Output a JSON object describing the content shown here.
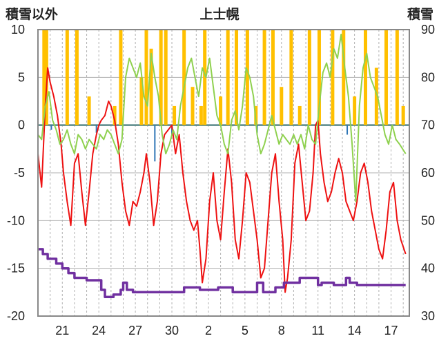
{
  "chart_data": {
    "type": "line",
    "title": "上士幌",
    "left_axis_label": "積雪以外",
    "right_axis_label": "積雪",
    "y_left": {
      "min": -20,
      "max": 10,
      "ticks": [
        "10",
        "5",
        "0",
        "-5",
        "-10",
        "-15",
        "-20"
      ]
    },
    "y_right": {
      "min": 30,
      "max": 90,
      "ticks": [
        "90",
        "80",
        "70",
        "60",
        "50",
        "40",
        "30"
      ]
    },
    "x_ticks": [
      {
        "label": "21",
        "day": 2
      },
      {
        "label": "24",
        "day": 5
      },
      {
        "label": "27",
        "day": 8
      },
      {
        "label": "30",
        "day": 11
      },
      {
        "label": "2",
        "day": 14
      },
      {
        "label": "5",
        "day": 17
      },
      {
        "label": "8",
        "day": 20
      },
      {
        "label": "11",
        "day": 23
      },
      {
        "label": "14",
        "day": 26
      },
      {
        "label": "17",
        "day": 29
      }
    ],
    "x_range": [
      0,
      30.5
    ],
    "grid": {
      "horizontal": true,
      "vertical_dashed": true
    },
    "colors": {
      "temperature": "#ee1111",
      "precip": "#ffc000",
      "sunshine": "#8fd14f",
      "wind": "#2e75b6",
      "snow_depth": "#7030a0",
      "zero_line": "#5a8a8a",
      "frame": "#888888",
      "grid": "#b0b0b0"
    },
    "series": [
      {
        "key": "temperature",
        "axis": "left",
        "points": [
          [
            0,
            -3
          ],
          [
            0.3,
            -6.5
          ],
          [
            0.6,
            2
          ],
          [
            0.8,
            6
          ],
          [
            1,
            4.5
          ],
          [
            1.3,
            3
          ],
          [
            1.6,
            1
          ],
          [
            1.9,
            -2
          ],
          [
            2.1,
            -5
          ],
          [
            2.4,
            -8
          ],
          [
            2.7,
            -10.5
          ],
          [
            3,
            -4
          ],
          [
            3.3,
            -3
          ],
          [
            3.6,
            -7
          ],
          [
            3.9,
            -10.5
          ],
          [
            4.2,
            -7
          ],
          [
            4.5,
            -3
          ],
          [
            4.8,
            -1
          ],
          [
            5,
            0
          ],
          [
            5.2,
            0.5
          ],
          [
            5.5,
            1
          ],
          [
            5.8,
            2.5
          ],
          [
            6,
            2
          ],
          [
            6.3,
            0.5
          ],
          [
            6.6,
            -2
          ],
          [
            6.9,
            -6
          ],
          [
            7.2,
            -9
          ],
          [
            7.5,
            -10.5
          ],
          [
            7.8,
            -8
          ],
          [
            8.1,
            -8.5
          ],
          [
            8.4,
            -7
          ],
          [
            8.7,
            -5
          ],
          [
            8.9,
            -3
          ],
          [
            9.2,
            -6
          ],
          [
            9.5,
            -10.5
          ],
          [
            9.8,
            -8
          ],
          [
            10.1,
            -3
          ],
          [
            10.4,
            -1
          ],
          [
            10.7,
            -0.5
          ],
          [
            11,
            0
          ],
          [
            11.3,
            -3
          ],
          [
            11.6,
            -1
          ],
          [
            11.9,
            -5
          ],
          [
            12.2,
            -8
          ],
          [
            12.5,
            -10
          ],
          [
            12.8,
            -11
          ],
          [
            13.1,
            -10
          ],
          [
            13.3,
            -13
          ],
          [
            13.5,
            -16.5
          ],
          [
            13.8,
            -14
          ],
          [
            14.1,
            -8
          ],
          [
            14.4,
            -5
          ],
          [
            14.7,
            -10
          ],
          [
            15,
            -12
          ],
          [
            15.3,
            -7
          ],
          [
            15.6,
            -2.5
          ],
          [
            15.9,
            -6
          ],
          [
            16.2,
            -12
          ],
          [
            16.5,
            -14
          ],
          [
            16.8,
            -10
          ],
          [
            17.1,
            -5
          ],
          [
            17.4,
            -6
          ],
          [
            17.7,
            -9
          ],
          [
            18,
            -12
          ],
          [
            18.3,
            -16
          ],
          [
            18.6,
            -15
          ],
          [
            18.9,
            -10
          ],
          [
            19.2,
            -5
          ],
          [
            19.5,
            -3
          ],
          [
            19.8,
            -8
          ],
          [
            20.1,
            -12
          ],
          [
            20.3,
            -17.5
          ],
          [
            20.5,
            -16
          ],
          [
            20.8,
            -12
          ],
          [
            21.1,
            -4
          ],
          [
            21.4,
            -2
          ],
          [
            21.7,
            -6
          ],
          [
            22,
            -10
          ],
          [
            22.3,
            -9
          ],
          [
            22.6,
            -5
          ],
          [
            22.8,
            0
          ],
          [
            23,
            0.5
          ],
          [
            23.2,
            -3
          ],
          [
            23.5,
            -6
          ],
          [
            23.8,
            -8
          ],
          [
            24.1,
            -7
          ],
          [
            24.4,
            -5
          ],
          [
            24.7,
            -3.5
          ],
          [
            25,
            -5
          ],
          [
            25.3,
            -8
          ],
          [
            25.6,
            -9
          ],
          [
            25.9,
            -10
          ],
          [
            26.2,
            -8
          ],
          [
            26.5,
            -5
          ],
          [
            26.8,
            -4
          ],
          [
            27.1,
            -6
          ],
          [
            27.4,
            -9
          ],
          [
            27.7,
            -11
          ],
          [
            28,
            -13
          ],
          [
            28.3,
            -14
          ],
          [
            28.6,
            -11
          ],
          [
            28.9,
            -7
          ],
          [
            29.2,
            -6
          ],
          [
            29.5,
            -10
          ],
          [
            29.8,
            -12
          ],
          [
            30.2,
            -13.5
          ]
        ]
      },
      {
        "key": "sunshine",
        "axis": "left",
        "points": [
          [
            0,
            -1
          ],
          [
            0.3,
            -1.5
          ],
          [
            0.6,
            2
          ],
          [
            0.9,
            3.5
          ],
          [
            1.2,
            0.5
          ],
          [
            1.5,
            -0.5
          ],
          [
            1.8,
            -2
          ],
          [
            2.1,
            -1.5
          ],
          [
            2.4,
            -0.5
          ],
          [
            2.7,
            -2
          ],
          [
            3,
            -3
          ],
          [
            3.3,
            -1
          ],
          [
            3.6,
            -1.5
          ],
          [
            3.9,
            -2.5
          ],
          [
            4.2,
            -1.5
          ],
          [
            4.5,
            -2
          ],
          [
            4.8,
            -2.5
          ],
          [
            5.1,
            -1
          ],
          [
            5.4,
            -1.5
          ],
          [
            5.7,
            -0.5
          ],
          [
            6,
            -1
          ],
          [
            6.3,
            -2
          ],
          [
            6.6,
            -3
          ],
          [
            6.9,
            -1.5
          ],
          [
            7.2,
            5
          ],
          [
            7.5,
            7
          ],
          [
            7.8,
            6
          ],
          [
            8.1,
            5
          ],
          [
            8.4,
            6.5
          ],
          [
            8.7,
            3
          ],
          [
            9,
            2
          ],
          [
            9.3,
            7.5
          ],
          [
            9.6,
            5
          ],
          [
            9.9,
            3
          ],
          [
            10.2,
            -1
          ],
          [
            10.5,
            -3
          ],
          [
            10.8,
            -2
          ],
          [
            11.1,
            -0.5
          ],
          [
            11.4,
            -1.5
          ],
          [
            11.7,
            2
          ],
          [
            12,
            4
          ],
          [
            12.3,
            6
          ],
          [
            12.6,
            7
          ],
          [
            12.9,
            5
          ],
          [
            13.2,
            3
          ],
          [
            13.5,
            6
          ],
          [
            13.8,
            5
          ],
          [
            14.1,
            7
          ],
          [
            14.4,
            4
          ],
          [
            14.7,
            1
          ],
          [
            15,
            0
          ],
          [
            15.3,
            -2
          ],
          [
            15.6,
            -3
          ],
          [
            15.9,
            0.5
          ],
          [
            16.2,
            1.5
          ],
          [
            16.5,
            -0.5
          ],
          [
            16.8,
            2
          ],
          [
            17.1,
            6
          ],
          [
            17.4,
            5
          ],
          [
            17.7,
            3
          ],
          [
            18,
            -1
          ],
          [
            18.3,
            -3
          ],
          [
            18.6,
            -2
          ],
          [
            18.9,
            -0.5
          ],
          [
            19.2,
            1
          ],
          [
            19.5,
            -0.5
          ],
          [
            19.8,
            -2
          ],
          [
            20.1,
            -1
          ],
          [
            20.4,
            -1.5
          ],
          [
            20.7,
            -2
          ],
          [
            21,
            -1
          ],
          [
            21.3,
            -2
          ],
          [
            21.6,
            -1
          ],
          [
            21.9,
            -2.5
          ],
          [
            22.2,
            0
          ],
          [
            22.5,
            -1.5
          ],
          [
            22.8,
            -2
          ],
          [
            23.1,
            2
          ],
          [
            23.4,
            5.5
          ],
          [
            23.7,
            6.5
          ],
          [
            24,
            5
          ],
          [
            24.3,
            8
          ],
          [
            24.6,
            7
          ],
          [
            24.9,
            9.5
          ],
          [
            25.2,
            6
          ],
          [
            25.5,
            3
          ],
          [
            25.8,
            -2
          ],
          [
            26.1,
            -8
          ],
          [
            26.4,
            2
          ],
          [
            26.7,
            6
          ],
          [
            27,
            7.5
          ],
          [
            27.3,
            5
          ],
          [
            27.6,
            4
          ],
          [
            27.9,
            3
          ],
          [
            28.2,
            1
          ],
          [
            28.5,
            -1
          ],
          [
            28.8,
            -2
          ],
          [
            29.1,
            0
          ],
          [
            29.4,
            -1.5
          ],
          [
            29.7,
            -2
          ],
          [
            30.2,
            -3
          ]
        ]
      },
      {
        "key": "snow_depth",
        "axis": "right",
        "points": [
          [
            0,
            44
          ],
          [
            0.4,
            44
          ],
          [
            0.4,
            43
          ],
          [
            0.8,
            43
          ],
          [
            0.8,
            42
          ],
          [
            1.5,
            42
          ],
          [
            1.5,
            41
          ],
          [
            2,
            41
          ],
          [
            2,
            40
          ],
          [
            2.5,
            40
          ],
          [
            2.5,
            39
          ],
          [
            3,
            39
          ],
          [
            3,
            38
          ],
          [
            4,
            38
          ],
          [
            4,
            37.5
          ],
          [
            5.2,
            37.5
          ],
          [
            5.2,
            35.5
          ],
          [
            5.5,
            35.5
          ],
          [
            5.5,
            34
          ],
          [
            6.2,
            34
          ],
          [
            6.2,
            34.5
          ],
          [
            6.8,
            34.5
          ],
          [
            6.8,
            35.5
          ],
          [
            7,
            35.5
          ],
          [
            7,
            37
          ],
          [
            7.3,
            37
          ],
          [
            7.3,
            35.5
          ],
          [
            7.8,
            35.5
          ],
          [
            7.8,
            35
          ],
          [
            12,
            35
          ],
          [
            12,
            36
          ],
          [
            13.3,
            36
          ],
          [
            13.3,
            35.5
          ],
          [
            14.8,
            35.5
          ],
          [
            14.8,
            36
          ],
          [
            16,
            36
          ],
          [
            16,
            35
          ],
          [
            18,
            35
          ],
          [
            18,
            37
          ],
          [
            18.5,
            37
          ],
          [
            18.5,
            35
          ],
          [
            19.5,
            35
          ],
          [
            19.5,
            36
          ],
          [
            20.2,
            36
          ],
          [
            20.2,
            37
          ],
          [
            21.5,
            37
          ],
          [
            21.5,
            38
          ],
          [
            23,
            38
          ],
          [
            23,
            36.5
          ],
          [
            23.3,
            36.5
          ],
          [
            23.3,
            37
          ],
          [
            24.3,
            37
          ],
          [
            24.3,
            36.5
          ],
          [
            25.3,
            36.5
          ],
          [
            25.3,
            38
          ],
          [
            25.6,
            38
          ],
          [
            25.6,
            37
          ],
          [
            26.2,
            37
          ],
          [
            26.2,
            36.5
          ],
          [
            30.2,
            36.5
          ]
        ]
      }
    ],
    "precip_bars": [
      [
        0.5,
        10
      ],
      [
        0.7,
        10
      ],
      [
        2.4,
        10
      ],
      [
        3.2,
        10
      ],
      [
        4.2,
        3
      ],
      [
        6.3,
        2
      ],
      [
        6.8,
        10
      ],
      [
        8.5,
        5
      ],
      [
        8.9,
        10
      ],
      [
        9.3,
        8
      ],
      [
        10.1,
        10
      ],
      [
        10.5,
        10
      ],
      [
        11.2,
        2
      ],
      [
        12.0,
        10
      ],
      [
        12.7,
        4
      ],
      [
        13.4,
        2
      ],
      [
        13.7,
        10
      ],
      [
        15.0,
        3
      ],
      [
        15.6,
        10
      ],
      [
        16.3,
        10
      ],
      [
        17.2,
        10
      ],
      [
        17.9,
        2
      ],
      [
        18.6,
        10
      ],
      [
        19.3,
        10
      ],
      [
        20.0,
        4
      ],
      [
        20.8,
        10
      ],
      [
        21.5,
        2
      ],
      [
        22.3,
        10
      ],
      [
        23.1,
        10
      ],
      [
        24.2,
        10
      ],
      [
        25.1,
        10
      ],
      [
        26.0,
        3
      ],
      [
        26.9,
        10
      ],
      [
        27.8,
        6
      ],
      [
        28.6,
        10
      ],
      [
        29.5,
        10
      ],
      [
        30.0,
        2
      ]
    ],
    "wind_bars": [
      [
        1.1,
        -0.5
      ],
      [
        4.8,
        -0.8
      ],
      [
        9.6,
        -3.8
      ],
      [
        11.0,
        -1
      ],
      [
        18.0,
        -0.8
      ],
      [
        25.4,
        -1
      ]
    ]
  }
}
